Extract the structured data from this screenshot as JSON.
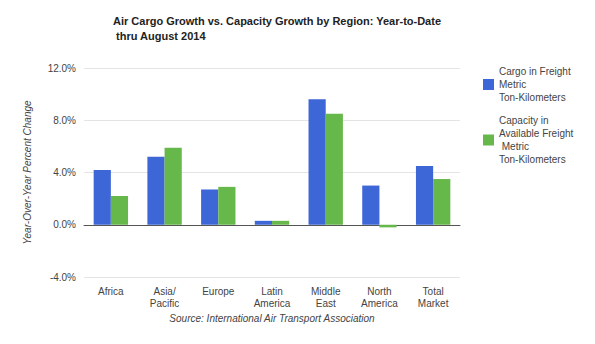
{
  "chart_data": {
    "type": "bar",
    "title": "Air Cargo Growth vs. Capacity Growth by Region: Year-to-Date thru August 2014",
    "ylabel": "Year-Over-Year Percent Change",
    "xlabel": "Source: International Air Transport Association",
    "categories": [
      "Africa",
      "Asia/\nPacific",
      "Europe",
      "Latin\nAmerica",
      "Middle\nEast",
      "North\nAmerica",
      "Total\nMarket"
    ],
    "series": [
      {
        "name": "Cargo in Freight Metric Ton-Kilometers",
        "color": "#3d66d6",
        "values": [
          4.2,
          5.2,
          2.7,
          0.3,
          9.6,
          3.0,
          4.5
        ]
      },
      {
        "name": "Capacity in Available Freight Metric Ton-Kilometers",
        "color": "#66b84a",
        "values": [
          2.2,
          5.9,
          2.9,
          0.3,
          8.5,
          -0.2,
          3.5
        ]
      }
    ],
    "ylim": [
      -4,
      12
    ],
    "yticks": [
      {
        "value": -4,
        "label": "-4.0%"
      },
      {
        "value": 0,
        "label": "0.0%"
      },
      {
        "value": 4,
        "label": "4.0%"
      },
      {
        "value": 8,
        "label": "8.0%"
      },
      {
        "value": 12,
        "label": "12.0%"
      }
    ],
    "grid": true,
    "legend": "right"
  }
}
